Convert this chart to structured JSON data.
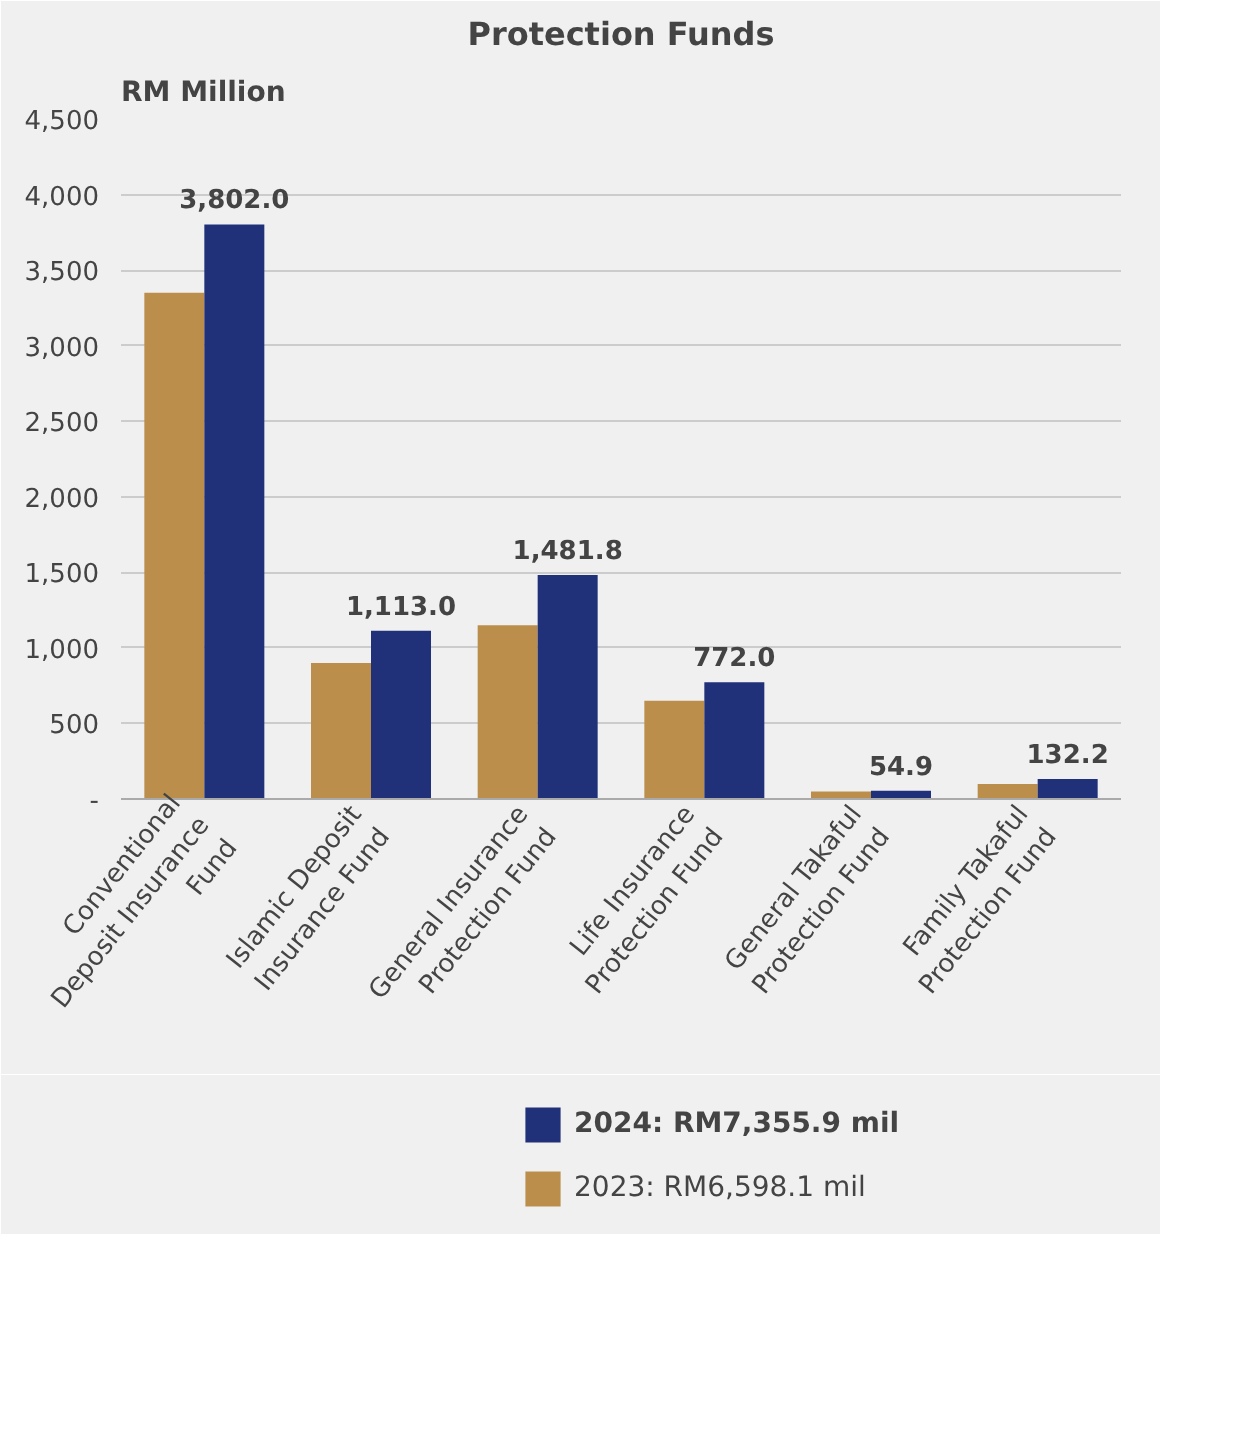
{
  "chart_data": {
    "type": "bar",
    "title": "Protection Funds",
    "ylabel": "RM Million",
    "categories": [
      "Conventional Deposit Insurance Fund",
      "Islamic Deposit Insurance Fund",
      "General Insurance Protection Fund",
      "Life Insurance Protection Fund",
      "General Takaful Protection Fund",
      "Family Takaful Protection Fund"
    ],
    "series": [
      {
        "name": "2023: RM6,598.1 mil",
        "color": "#bb8f4b",
        "values": [
          3350,
          900,
          1150,
          650,
          50,
          100
        ]
      },
      {
        "name": "2024: RM7,355.9 mil",
        "color": "#20317a",
        "values": [
          3802.0,
          1113.0,
          1481.8,
          772.0,
          54.9,
          132.2
        ],
        "value_labels": [
          "3,802.0",
          "1,113.0",
          "1,481.8",
          "772.0",
          "54.9",
          "132.2"
        ]
      }
    ],
    "ylim": [
      0,
      4500
    ],
    "yticks": [
      {
        "value": 0,
        "label": "-"
      },
      500,
      {
        "value": 1000,
        "label": "1,000"
      },
      {
        "value": 1500,
        "label": "1,500"
      },
      {
        "value": 2000,
        "label": "2,000"
      },
      {
        "value": 2500,
        "label": "2,500"
      },
      {
        "value": 3000,
        "label": "3,000"
      },
      {
        "value": 3500,
        "label": "3,500"
      },
      {
        "value": 4000,
        "label": "4,000"
      },
      {
        "value": 4500,
        "label": "4,500"
      }
    ],
    "grid": "y",
    "legend": "bottom"
  }
}
